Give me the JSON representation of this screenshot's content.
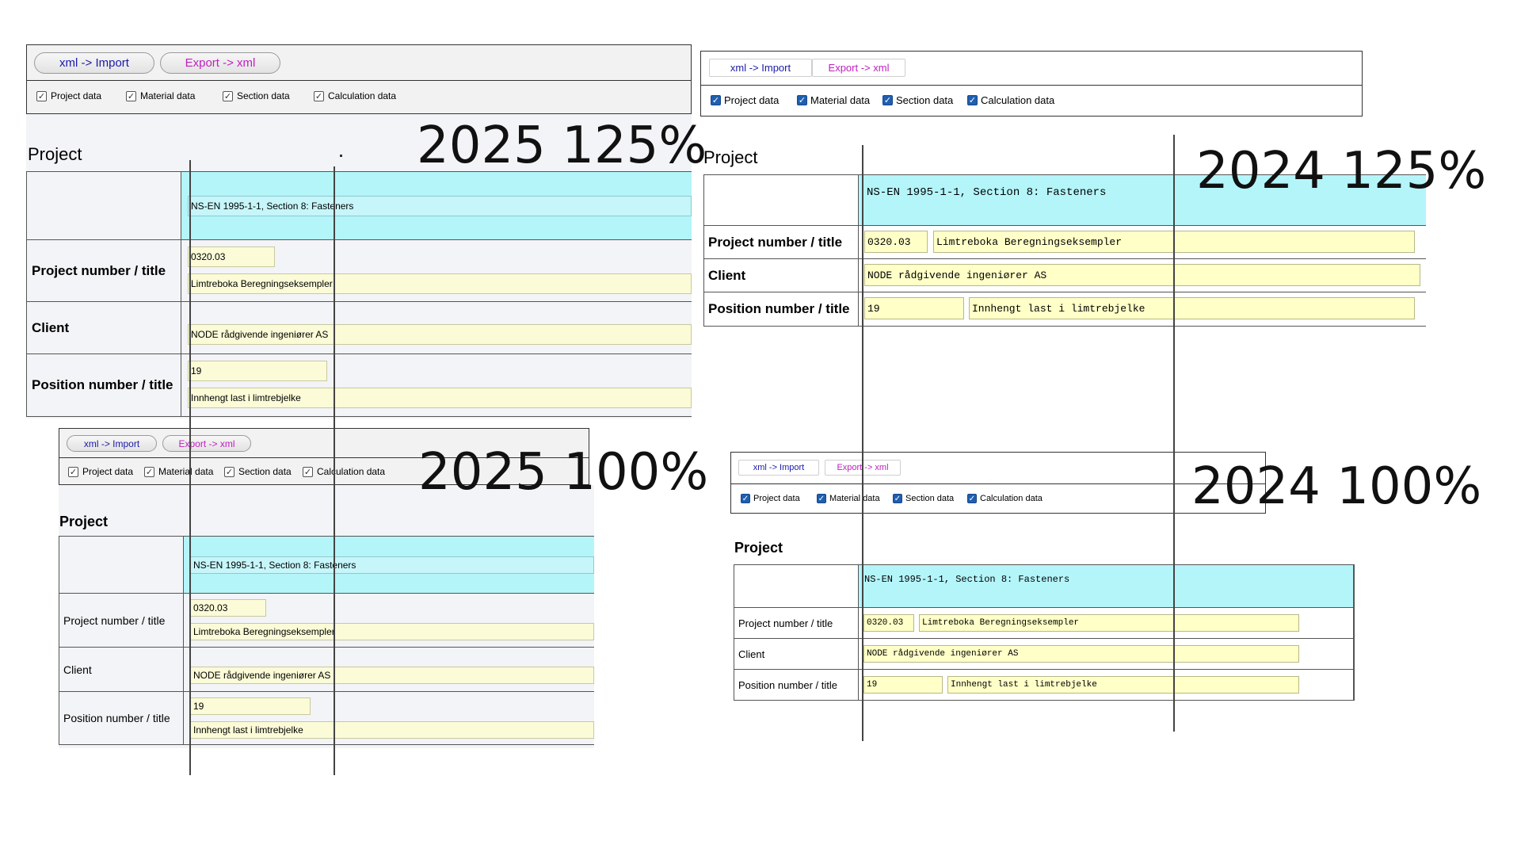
{
  "labels": {
    "q1": "2025 125%",
    "q2": "2024 125%",
    "q3": "2025 100%",
    "q4": "2024 100%"
  },
  "toolbar": {
    "import_label": "xml -> Import",
    "export_label": "Export -> xml"
  },
  "checkboxes": {
    "project": "Project data",
    "material": "Material data",
    "section": "Section data",
    "calculation": "Calculation data"
  },
  "form": {
    "section_title": "Project",
    "standard": "NS-EN 1995-1-1, Section 8: Fasteners",
    "standard_2024": "NS-EN 1995-1-1, Section 8: Fasteners",
    "project_label": "Project number / title",
    "project_number": "0320.03",
    "project_title": "Limtreboka Beregningseksempler",
    "client_label": "Client",
    "client": "NODE rådgivende ingeniører AS",
    "position_label": "Position number / title",
    "position_number": "19",
    "position_title": "Innhengt last i limtrebjelke"
  },
  "colors": {
    "field_yellow": "#ffffc8",
    "header_cyan": "#b4f5fa",
    "import_text": "#1a1aa8",
    "export_text": "#c020c0",
    "checkbox_blue": "#1f5fb0"
  }
}
